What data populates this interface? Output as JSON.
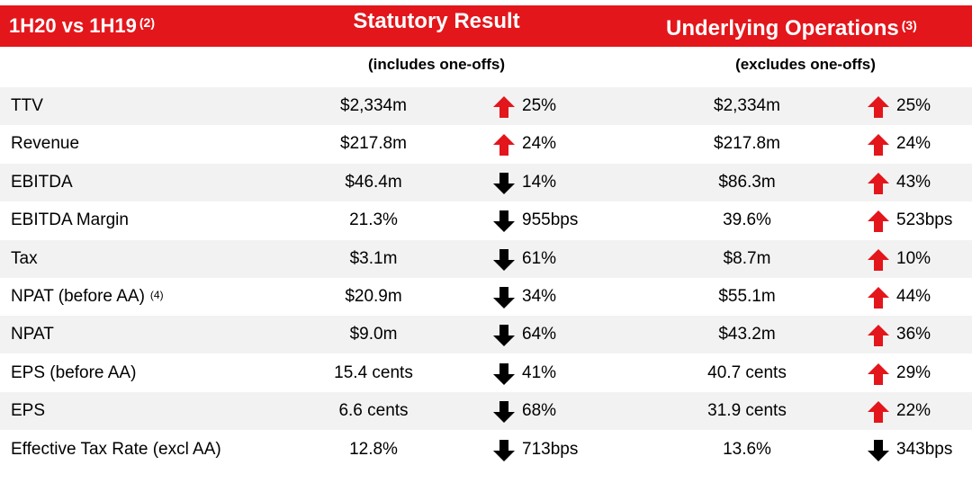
{
  "header": {
    "period": "1H20 vs 1H19",
    "period_note": "(2)",
    "statutory_title": "Statutory Result",
    "underlying_title": "Underlying Operations",
    "underlying_note": "(3)"
  },
  "subheaders": {
    "statutory": "(includes one-offs)",
    "underlying": "(excludes one-offs)"
  },
  "colors": {
    "header_bg": "#e3161b",
    "up_arrow": "#e3161b",
    "down_arrow": "#000000",
    "row_shade": "#f2f2f2"
  },
  "rows": [
    {
      "label": "TTV",
      "note": "",
      "stat_value": "$2,334m",
      "stat_dir": "up",
      "stat_pct": "25%",
      "und_value": "$2,334m",
      "und_dir": "up",
      "und_pct": "25%"
    },
    {
      "label": "Revenue",
      "note": "",
      "stat_value": "$217.8m",
      "stat_dir": "up",
      "stat_pct": "24%",
      "und_value": "$217.8m",
      "und_dir": "up",
      "und_pct": "24%"
    },
    {
      "label": "EBITDA",
      "note": "",
      "stat_value": "$46.4m",
      "stat_dir": "down",
      "stat_pct": "14%",
      "und_value": "$86.3m",
      "und_dir": "up",
      "und_pct": "43%"
    },
    {
      "label": "EBITDA Margin",
      "note": "",
      "stat_value": "21.3%",
      "stat_dir": "down",
      "stat_pct": "955bps",
      "und_value": "39.6%",
      "und_dir": "up",
      "und_pct": "523bps"
    },
    {
      "label": "Tax",
      "note": "",
      "stat_value": "$3.1m",
      "stat_dir": "down",
      "stat_pct": "61%",
      "und_value": "$8.7m",
      "und_dir": "up",
      "und_pct": "10%"
    },
    {
      "label": "NPAT (before AA)",
      "note": "(4)",
      "stat_value": "$20.9m",
      "stat_dir": "down",
      "stat_pct": "34%",
      "und_value": "$55.1m",
      "und_dir": "up",
      "und_pct": "44%"
    },
    {
      "label": "NPAT",
      "note": "",
      "stat_value": "$9.0m",
      "stat_dir": "down",
      "stat_pct": "64%",
      "und_value": "$43.2m",
      "und_dir": "up",
      "und_pct": "36%"
    },
    {
      "label": "EPS (before AA)",
      "note": "",
      "stat_value": "15.4 cents",
      "stat_dir": "down",
      "stat_pct": "41%",
      "und_value": "40.7 cents",
      "und_dir": "up",
      "und_pct": "29%"
    },
    {
      "label": "EPS",
      "note": "",
      "stat_value": "6.6 cents",
      "stat_dir": "down",
      "stat_pct": "68%",
      "und_value": "31.9 cents",
      "und_dir": "up",
      "und_pct": "22%"
    },
    {
      "label": "Effective Tax Rate (excl AA)",
      "note": "",
      "stat_value": "12.8%",
      "stat_dir": "down",
      "stat_pct": "713bps",
      "und_value": "13.6%",
      "und_dir": "down",
      "und_pct": "343bps"
    }
  ]
}
